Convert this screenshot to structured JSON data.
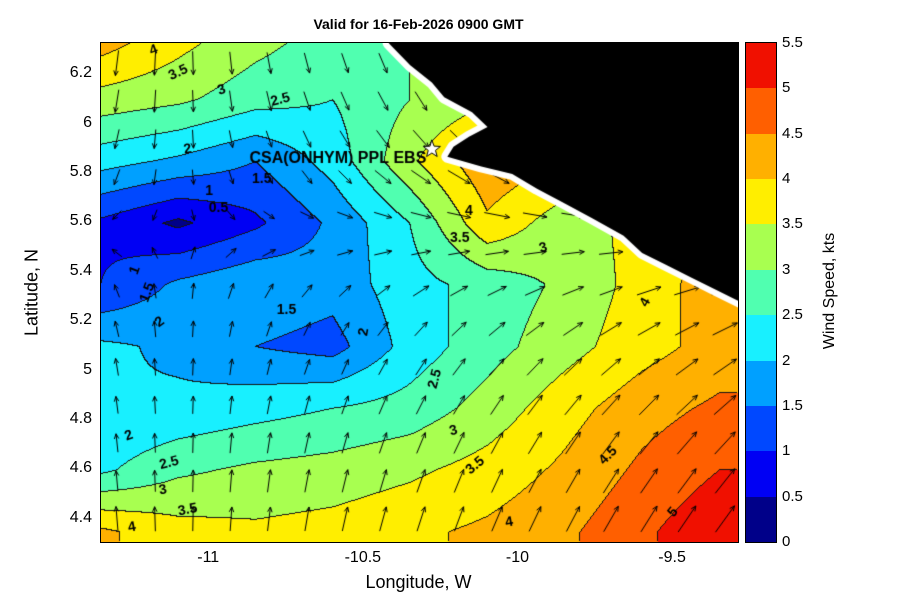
{
  "chart_data": {
    "type": "heatmap",
    "subtype": "filled-contour-with-wind-arrows",
    "title": "Valid for 16-Feb-2026 0900 GMT",
    "xlabel": "Longitude, W",
    "ylabel": "Latitude, N",
    "xlim": [
      -11.35,
      -9.29
    ],
    "ylim": [
      4.31,
      6.33
    ],
    "xticks": {
      "values": [
        -11,
        -10.5,
        -10,
        -9.5
      ],
      "labels": [
        "-11",
        "-10.5",
        "-10",
        "-9.5"
      ]
    },
    "yticks": {
      "values": [
        4.4,
        4.6,
        4.8,
        5,
        5.2,
        5.4,
        5.6,
        5.8,
        6,
        6.2
      ],
      "labels": [
        "4.4",
        "4.6",
        "4.8",
        "5",
        "5.2",
        "5.4",
        "5.6",
        "5.8",
        "6",
        "6.2"
      ]
    },
    "levels_step": 0.5,
    "colorbar": {
      "label": "Wind Speed, kts",
      "range": [
        0,
        5.5
      ],
      "tick_values": [
        0,
        0.5,
        1,
        1.5,
        2,
        2.5,
        3,
        3.5,
        4,
        4.5,
        5,
        5.5
      ],
      "tick_labels": [
        "0",
        "0.5",
        "1",
        "1.5",
        "2",
        "2.5",
        "3",
        "3.5",
        "4",
        "4.5",
        "5",
        "5.5"
      ],
      "band_colors": [
        "#000089",
        "#0000f4",
        "#0048ff",
        "#00a0ff",
        "#18f0ff",
        "#50ffb0",
        "#a8ff50",
        "#ffee00",
        "#ffb000",
        "#ff5f00",
        "#f01000"
      ]
    },
    "grid": {
      "lon": [
        -11.35,
        -11.1,
        -10.85,
        -10.6,
        -10.35,
        -10.1,
        -9.85,
        -9.6,
        -9.35
      ],
      "lat": [
        4.35,
        4.6,
        4.85,
        5.1,
        5.35,
        5.6,
        5.85,
        6.1,
        6.35
      ],
      "wind_speed_kts": [
        [
          4.1,
          3.7,
          3.6,
          3.7,
          3.9,
          4.1,
          4.4,
          4.9,
          5.4
        ],
        [
          2.4,
          2.9,
          3.1,
          3.2,
          3.4,
          3.7,
          4.1,
          4.6,
          5.0
        ],
        [
          2.0,
          2.1,
          2.3,
          2.5,
          2.7,
          3.2,
          3.8,
          4.3,
          4.6
        ],
        [
          2.1,
          1.9,
          1.5,
          1.3,
          2.2,
          2.8,
          3.3,
          3.8,
          4.2
        ],
        [
          1.0,
          1.6,
          1.9,
          1.7,
          2.3,
          2.7,
          3.1,
          3.7,
          4.3
        ],
        [
          0.9,
          0.4,
          0.9,
          1.6,
          2.5,
          3.9,
          3.2,
          3.7,
          4.0
        ],
        [
          2.2,
          1.9,
          1.5,
          2.2,
          3.4,
          4.4,
          4.0,
          3.8,
          3.6
        ],
        [
          3.3,
          3.1,
          2.7,
          2.5,
          3.0,
          3.4,
          3.5,
          3.5,
          3.5
        ],
        [
          4.3,
          3.7,
          3.2,
          2.8,
          3.0,
          3.2,
          3.3,
          3.4,
          3.5
        ]
      ]
    },
    "wind_arrows": {
      "u_by_lon": [
        -0.1,
        0.0,
        0.1,
        0.2,
        0.3,
        0.4,
        0.5,
        0.6,
        0.7
      ],
      "v_by_lat": [
        1.0,
        0.86,
        0.63,
        0.41,
        0.18,
        -0.05,
        -0.27,
        -0.5,
        -0.72
      ]
    },
    "contour_labels": [
      {
        "text": "4",
        "lon": -11.18,
        "lat": 6.3,
        "angle": -20
      },
      {
        "text": "3.5",
        "lon": -11.1,
        "lat": 6.21,
        "angle": -25
      },
      {
        "text": "3",
        "lon": -10.96,
        "lat": 6.14,
        "angle": -20
      },
      {
        "text": "2.5",
        "lon": -10.77,
        "lat": 6.1,
        "angle": -15
      },
      {
        "text": "2",
        "lon": -11.07,
        "lat": 5.9,
        "angle": -10
      },
      {
        "text": "1.5",
        "lon": -10.83,
        "lat": 5.78,
        "angle": 0
      },
      {
        "text": "1",
        "lon": -11.0,
        "lat": 5.73,
        "angle": 0
      },
      {
        "text": "0.5",
        "lon": -10.97,
        "lat": 5.66,
        "angle": 0
      },
      {
        "text": "4",
        "lon": -10.16,
        "lat": 5.65,
        "angle": 0
      },
      {
        "text": "3.5",
        "lon": -10.19,
        "lat": 5.54,
        "angle": 0
      },
      {
        "text": "3",
        "lon": -9.92,
        "lat": 5.5,
        "angle": -15
      },
      {
        "text": "1",
        "lon": -11.24,
        "lat": 5.41,
        "angle": -70
      },
      {
        "text": "1.5",
        "lon": -11.2,
        "lat": 5.32,
        "angle": -70
      },
      {
        "text": "2",
        "lon": -11.16,
        "lat": 5.2,
        "angle": -35
      },
      {
        "text": "1.5",
        "lon": -10.75,
        "lat": 5.25,
        "angle": 0
      },
      {
        "text": "4",
        "lon": -9.59,
        "lat": 5.28,
        "angle": -60
      },
      {
        "text": "2",
        "lon": -10.5,
        "lat": 5.16,
        "angle": -80
      },
      {
        "text": "2.5",
        "lon": -10.27,
        "lat": 4.97,
        "angle": -75
      },
      {
        "text": "3",
        "lon": -10.21,
        "lat": 4.76,
        "angle": -15
      },
      {
        "text": "3.5",
        "lon": -10.14,
        "lat": 4.62,
        "angle": -40
      },
      {
        "text": "4.5",
        "lon": -9.71,
        "lat": 4.66,
        "angle": -45
      },
      {
        "text": "2",
        "lon": -11.26,
        "lat": 4.74,
        "angle": -20
      },
      {
        "text": "2.5",
        "lon": -11.13,
        "lat": 4.63,
        "angle": -15
      },
      {
        "text": "3",
        "lon": -11.15,
        "lat": 4.52,
        "angle": -10
      },
      {
        "text": "3.5",
        "lon": -11.07,
        "lat": 4.44,
        "angle": -10
      },
      {
        "text": "4",
        "lon": -11.25,
        "lat": 4.37,
        "angle": -10
      },
      {
        "text": "4",
        "lon": -10.03,
        "lat": 4.39,
        "angle": -10
      },
      {
        "text": "5",
        "lon": -9.5,
        "lat": 4.43,
        "angle": -50
      }
    ],
    "coastline_lon_lat": [
      [
        -10.42,
        6.33
      ],
      [
        -10.35,
        6.24
      ],
      [
        -10.28,
        6.17
      ],
      [
        -10.24,
        6.11
      ],
      [
        -10.15,
        6.05
      ],
      [
        -10.1,
        5.99
      ],
      [
        -10.16,
        5.95
      ],
      [
        -10.21,
        5.91
      ],
      [
        -10.23,
        5.87
      ],
      [
        -10.12,
        5.83
      ],
      [
        -10.02,
        5.8
      ],
      [
        -9.94,
        5.74
      ],
      [
        -9.85,
        5.68
      ],
      [
        -9.76,
        5.62
      ],
      [
        -9.66,
        5.55
      ],
      [
        -9.6,
        5.48
      ],
      [
        -9.52,
        5.43
      ],
      [
        -9.44,
        5.38
      ],
      [
        -9.36,
        5.33
      ],
      [
        -9.28,
        5.28
      ]
    ],
    "land_color": "#000000",
    "coast_stroke_color": "#ffffff",
    "contour_line_color": "#141414",
    "station": {
      "label": "CSA(ONHYM) PPL EBS",
      "label_lon": -10.87,
      "label_lat": 5.845,
      "marker": "star",
      "marker_lon": -10.28,
      "marker_lat": 5.9
    }
  }
}
